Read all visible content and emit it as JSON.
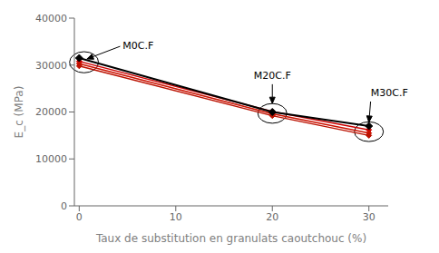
{
  "chart_data": {
    "type": "line",
    "xlabel": "Taux de substitution en granulats caoutchouc (%)",
    "ylabel": "E_c (MPa)",
    "x": [
      0,
      20,
      30
    ],
    "xlim": [
      -0.5,
      32
    ],
    "xticks": [
      0,
      10,
      20,
      30
    ],
    "ylim": [
      0,
      40000
    ],
    "yticks": [
      0,
      10000,
      20000,
      30000,
      40000
    ],
    "grid": false,
    "marker": "diamond",
    "series": [
      {
        "color": "#cc0000",
        "values": [
          30800,
          20100,
          16200
        ]
      },
      {
        "color": "#cc1100",
        "values": [
          30300,
          19600,
          15500
        ]
      },
      {
        "color": "#bb1100",
        "values": [
          29800,
          19200,
          15000
        ]
      },
      {
        "color": "#000000",
        "values": [
          31500,
          20000,
          17000
        ]
      }
    ],
    "ellipses": [
      {
        "x": 0.5,
        "y": 30600,
        "width": 3.0,
        "height": 4500
      },
      {
        "x": 20.0,
        "y": 19700,
        "width": 3.0,
        "height": 4200
      },
      {
        "x": 30.0,
        "y": 15800,
        "width": 3.0,
        "height": 4200
      }
    ],
    "annotations": [
      {
        "text": "M0C.F",
        "x": 0.8,
        "y": 31300,
        "text_x": 4.5,
        "text_y": 34200
      },
      {
        "text": "M20C.F",
        "x": 20.0,
        "y": 21800,
        "text_x": 20.0,
        "text_y": 26500
      },
      {
        "text": "M30C.F",
        "x": 30.0,
        "y": 17800,
        "text_x": 30.2,
        "text_y": 22800
      }
    ]
  }
}
